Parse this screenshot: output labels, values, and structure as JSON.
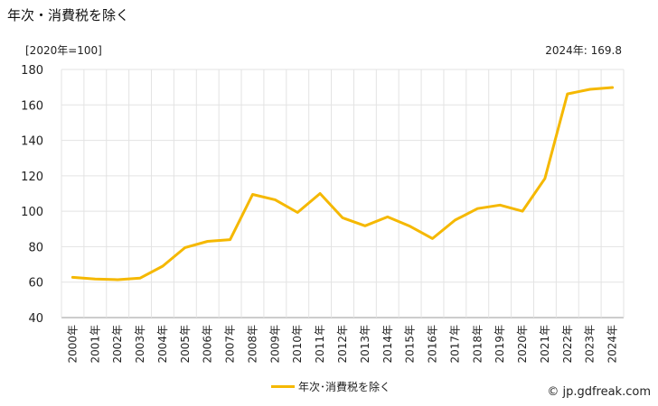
{
  "header": {
    "title": "年次・消費税を除く",
    "unit": "[2020年=100]",
    "latest_label": "2024年: 169.8"
  },
  "legend": {
    "label": "年次･消費税を除く"
  },
  "credit": {
    "text": "© jp.gdfreak.com"
  },
  "chart_data": {
    "type": "line",
    "title": "年次・消費税を除く",
    "ylabel": "[2020年=100]",
    "xlabel": "",
    "ylim": [
      40,
      180
    ],
    "yticks": [
      40,
      60,
      80,
      100,
      120,
      140,
      160,
      180
    ],
    "grid": true,
    "legend_position": "bottom",
    "categories": [
      "2000年",
      "2001年",
      "2002年",
      "2003年",
      "2004年",
      "2005年",
      "2006年",
      "2007年",
      "2008年",
      "2009年",
      "2010年",
      "2011年",
      "2012年",
      "2013年",
      "2014年",
      "2015年",
      "2016年",
      "2017年",
      "2018年",
      "2019年",
      "2020年",
      "2021年",
      "2022年",
      "2023年",
      "2024年"
    ],
    "series": [
      {
        "name": "年次･消費税を除く",
        "color": "#f5b800",
        "values": [
          62.7,
          61.8,
          61.4,
          62.3,
          69.0,
          79.5,
          83.0,
          84.0,
          109.5,
          106.5,
          99.3,
          110.0,
          96.3,
          91.8,
          96.8,
          91.5,
          84.6,
          95.0,
          101.5,
          103.5,
          100.0,
          118.5,
          166.2,
          168.8,
          169.8
        ]
      }
    ]
  }
}
